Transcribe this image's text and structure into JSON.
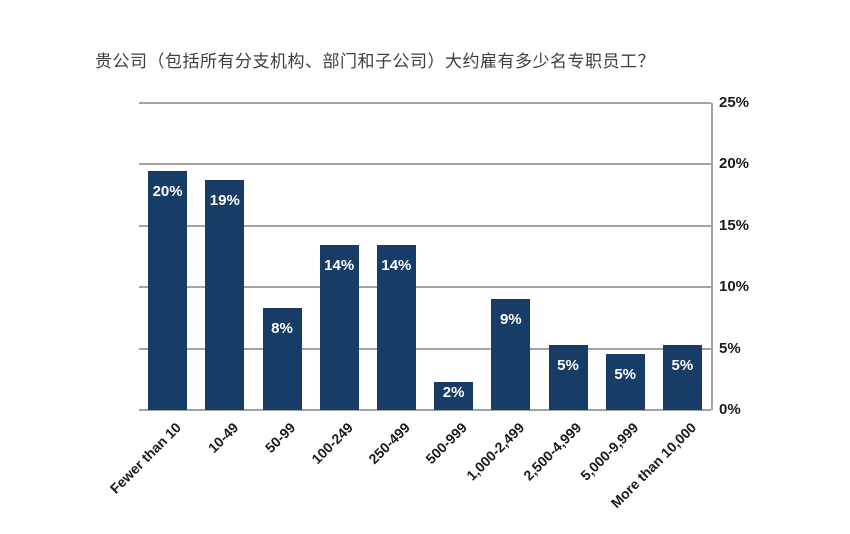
{
  "title": "贵公司（包括所有分支机构、部门和子公司）大约雇有多少名专职员工？",
  "colors": {
    "bar": "#173C66",
    "grid": "#A3A3A3",
    "title_text": "#3F3F3F",
    "axis_text": "#1A1A1A",
    "bar_label_text": "#FFFFFF",
    "background": "#FFFFFF"
  },
  "chart_data": {
    "type": "bar",
    "title": "贵公司（包括所有分支机构、部门和子公司）大约雇有多少名专职员工？",
    "categories": [
      "Fewer than 10",
      "10-49",
      "50-99",
      "100-249",
      "250-499",
      "500-999",
      "1,000-2,499",
      "2,500-4,999",
      "5,000-9,999",
      "More than 10,000"
    ],
    "values": [
      20,
      19,
      8,
      14,
      14,
      2,
      9,
      5,
      5,
      5
    ],
    "data_labels": [
      "20%",
      "19%",
      "8%",
      "14%",
      "14%",
      "2%",
      "9%",
      "5%",
      "5%",
      "5%"
    ],
    "display_heights_pct": [
      19.5,
      18.7,
      8.3,
      13.4,
      13.4,
      2.3,
      9.0,
      5.3,
      4.6,
      5.3
    ],
    "xlabel": "",
    "ylabel": "",
    "ylim": [
      0,
      25
    ],
    "ytick_values": [
      0,
      5,
      10,
      15,
      20,
      25
    ],
    "ytick_labels": [
      "0%",
      "5%",
      "10%",
      "15%",
      "20%",
      "25%"
    ],
    "y_axis_position": "right",
    "grid": "horizontal",
    "legend": "none",
    "bar_color": "#173C66",
    "x_label_rotation_deg": -45
  }
}
